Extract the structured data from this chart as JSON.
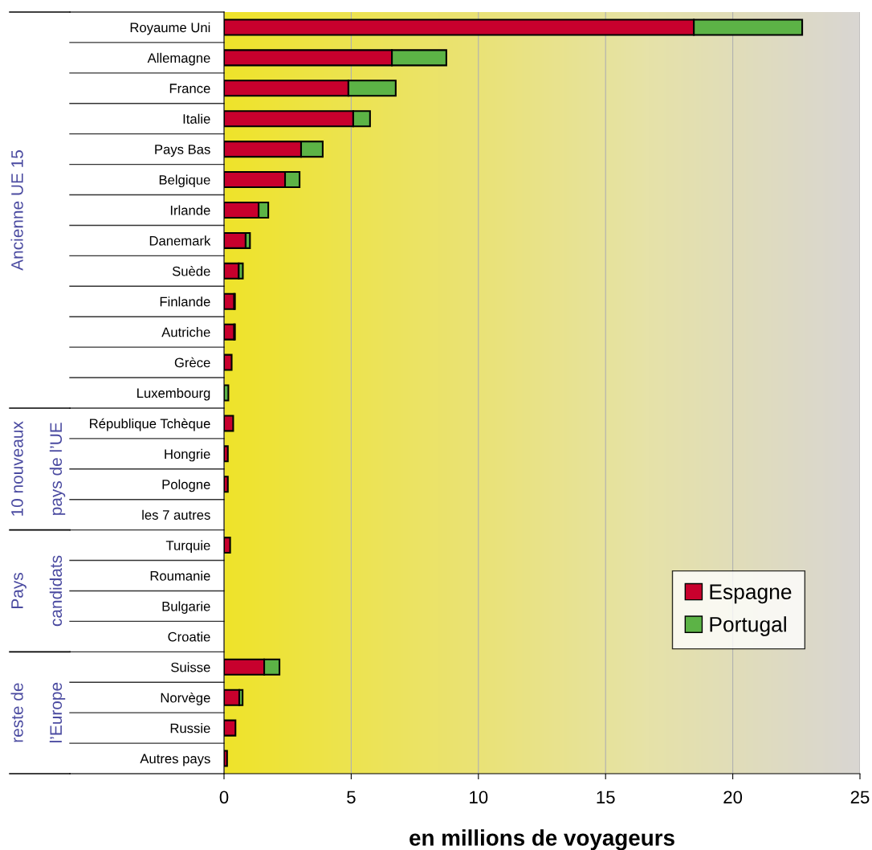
{
  "chart_data": {
    "type": "bar",
    "orientation": "horizontal",
    "stacked": true,
    "xlabel": "en millions de voyageurs",
    "categories": [
      "Royaume Uni",
      "Allemagne",
      "France",
      "Italie",
      "Pays Bas",
      "Belgique",
      "Irlande",
      "Danemark",
      "Suède",
      "Finlande",
      "Autriche",
      "Grèce",
      "Luxembourg",
      "République Tchèque",
      "Hongrie",
      "Pologne",
      "les 7 autres",
      "Turquie",
      "Roumanie",
      "Bulgarie",
      "Croatie",
      "Suisse",
      "Norvège",
      "Russie",
      "Autres pays"
    ],
    "series": [
      {
        "name": "Espagne",
        "color": "#c8002d",
        "values": [
          18.47,
          6.6,
          4.89,
          5.08,
          3.03,
          2.4,
          1.36,
          0.85,
          0.58,
          0.4,
          0.4,
          0.3,
          null,
          0.36,
          0.15,
          0.15,
          null,
          0.24,
          null,
          null,
          null,
          1.58,
          0.6,
          0.45,
          0.12
        ]
      },
      {
        "name": "Portugal",
        "color": "#5cb346",
        "values": [
          4.26,
          2.14,
          1.86,
          0.66,
          0.85,
          0.57,
          0.38,
          0.17,
          0.16,
          0.03,
          0.03,
          null,
          0.17,
          null,
          null,
          null,
          null,
          null,
          null,
          null,
          null,
          0.6,
          0.13,
          null,
          null
        ]
      }
    ],
    "xlim": [
      0,
      25
    ],
    "xticks": [
      0,
      5,
      10,
      15,
      20,
      25
    ],
    "grid": "x",
    "legend": "bottom right",
    "annotations": [
      "Ancienne UE 15",
      "10 nouveaux\npays de l’UE",
      "Pays\ncandidats",
      "reste de\nl’Europe"
    ]
  }
}
